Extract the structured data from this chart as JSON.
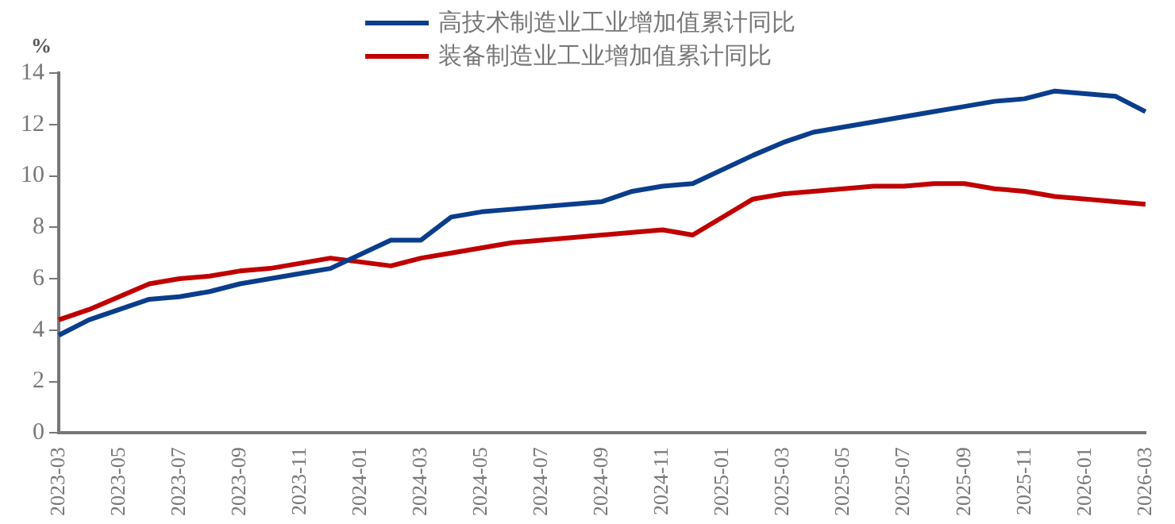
{
  "chart_data": {
    "type": "line",
    "ylabel": "%",
    "categories": [
      "2023-03",
      null,
      "2023-05",
      null,
      "2023-07",
      null,
      "2023-09",
      null,
      "2023-11",
      null,
      "2024-01",
      null,
      "2024-03",
      null,
      "2024-05",
      null,
      "2024-07",
      null,
      "2024-09",
      null,
      "2024-11",
      null,
      "2025-01",
      null,
      "2025-03",
      null,
      "2025-05",
      null,
      "2025-07",
      null,
      "2025-09",
      null,
      "2025-11",
      null,
      "2026-01",
      null,
      "2026-03"
    ],
    "series": [
      {
        "name": "高技术制造业工业增加值累计同比",
        "color": "#0a3d8c",
        "values": [
          3.8,
          4.4,
          4.8,
          5.2,
          5.3,
          5.5,
          5.8,
          6.0,
          6.2,
          6.4,
          null,
          7.5,
          7.5,
          8.4,
          8.6,
          8.7,
          8.8,
          8.9,
          9.0,
          9.4,
          9.6,
          9.7,
          null,
          10.8,
          11.3,
          11.7,
          11.9,
          12.1,
          12.3,
          12.5,
          12.7,
          12.9,
          13.0,
          13.3,
          null,
          13.1,
          12.5
        ]
      },
      {
        "name": "装备制造业工业增加值累计同比",
        "color": "#c00000",
        "values": [
          4.4,
          4.8,
          5.3,
          5.8,
          6.0,
          6.1,
          6.3,
          6.4,
          6.6,
          6.8,
          null,
          6.5,
          6.8,
          7.0,
          7.2,
          7.4,
          7.5,
          7.6,
          7.7,
          7.8,
          7.9,
          7.7,
          null,
          9.1,
          9.3,
          9.4,
          9.5,
          9.6,
          9.6,
          9.7,
          9.7,
          9.5,
          9.4,
          9.2,
          null,
          9.0,
          8.9
        ]
      }
    ],
    "ylim": [
      0,
      14
    ],
    "yticks": [
      0,
      2,
      4,
      6,
      8,
      10,
      12,
      14
    ],
    "grid": false,
    "legend": "top",
    "marker": "none",
    "line_style": "solid"
  }
}
